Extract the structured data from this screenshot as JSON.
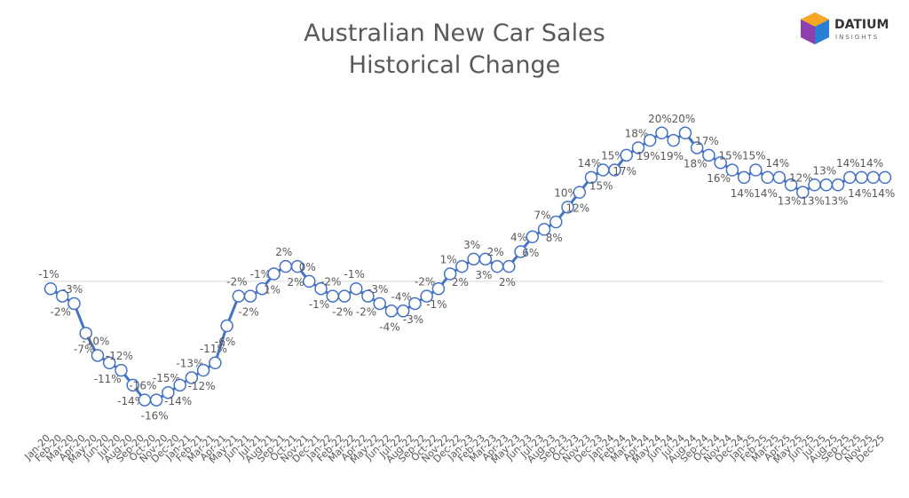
{
  "logo": {
    "name": "DATIUM",
    "tagline": "INSIGHTS"
  },
  "chart_data": {
    "type": "line",
    "title": "Australian New Car Sales",
    "subtitle": "Historical Change",
    "categories": [
      "Jan-20",
      "Feb-20",
      "Mar-20",
      "Apr-20",
      "May-20",
      "Jun-20",
      "Jul-20",
      "Aug-20",
      "Sep-20",
      "Oct-20",
      "Nov-20",
      "Dec-20",
      "Jan-21",
      "Feb-21",
      "Mar-21",
      "Apr-21",
      "May-21",
      "Jun-21",
      "Jul-21",
      "Aug-21",
      "Sep-21",
      "Oct-21",
      "Nov-21",
      "Dec-21",
      "Jan-22",
      "Feb-22",
      "Mar-22",
      "Apr-22",
      "May-22",
      "Jun-22",
      "Jul-22",
      "Aug-22",
      "Sep-22",
      "Oct-22",
      "Nov-22",
      "Dec-22",
      "Jan-23",
      "Feb-23",
      "Mar-23",
      "Apr-23",
      "May-23",
      "Jun-23",
      "Jul-23",
      "Aug-23",
      "Sep-23",
      "Oct-23",
      "Nov-23",
      "Dec-23",
      "Jan-24",
      "Feb-24",
      "Mar-24",
      "Apr-24",
      "May-24",
      "Jun-24",
      "Jul-24",
      "Aug-24",
      "Sep-24",
      "Oct-24",
      "Nov-24",
      "Dec-24",
      "Jan-25",
      "Feb-25",
      "Mar-25",
      "Apr-25",
      "May-25",
      "Jun-25",
      "Jul-25",
      "Aug-25",
      "Sep-25",
      "Oct-25",
      "Nov-25",
      "Dec-25"
    ],
    "values": [
      -1,
      -2,
      -3,
      -7,
      -10,
      -11,
      -12,
      -14,
      -16,
      -16,
      -15,
      -14,
      -13,
      -12,
      -11,
      -6,
      -2,
      -2,
      -1,
      1,
      2,
      2,
      0,
      -1,
      -2,
      -2,
      -1,
      -2,
      -3,
      -4,
      -4,
      -3,
      -2,
      -1,
      1,
      2,
      3,
      3,
      2,
      2,
      4,
      6,
      7,
      8,
      10,
      12,
      14,
      15,
      15,
      17,
      18,
      19,
      20,
      19,
      20,
      18,
      17,
      16,
      15,
      14,
      15,
      14,
      14,
      13,
      12,
      13,
      13,
      13,
      14,
      14,
      14,
      14
    ],
    "value_labels": [
      "-1%",
      "-2%",
      "-3%",
      "-7%",
      "-10%",
      "-11%",
      "-12%",
      "-14%",
      "-16%",
      "-16%",
      "-15%",
      "-14%",
      "-13%",
      "-12%",
      "-11%",
      "-6%",
      "-2%",
      "-2%",
      "-1%",
      "1%",
      "2%",
      "2%",
      "0%",
      "-1%",
      "-2%",
      "-2%",
      "-1%",
      "-2%",
      "-3%",
      "-4%",
      "-4%",
      "-3%",
      "-2%",
      "-1%",
      "1%",
      "2%",
      "3%",
      "3%",
      "2%",
      "2%",
      "4%",
      "6%",
      "7%",
      "8%",
      "10%",
      "12%",
      "14%",
      "15%",
      "15%",
      "17%",
      "18%",
      "19%",
      "20%",
      "19%",
      "20%",
      "18%",
      "17%",
      "16%",
      "15%",
      "14%",
      "15%",
      "14%",
      "14%",
      "13%",
      "12%",
      "13%",
      "13%",
      "13%",
      "14%",
      "14%",
      "14%",
      "14%"
    ],
    "color": "#4472c4",
    "ylim": [
      -20,
      25
    ],
    "zero_line": true
  }
}
